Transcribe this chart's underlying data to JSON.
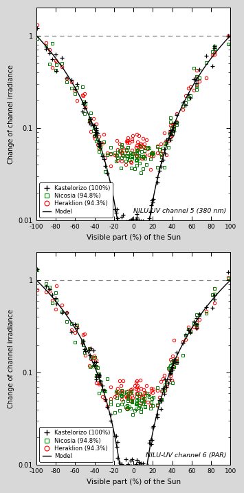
{
  "panel1_title": "NILU-UV channel 5 (380 nm)",
  "panel2_title": "NILU-UV channel 6 (PAR)",
  "xlabel": "Visible part (%) of the Sun",
  "ylabel": "Change of channel irradiance",
  "xlim": [
    -100,
    100
  ],
  "ylim_log": [
    0.01,
    2.0
  ],
  "dashed_y": 1.0,
  "kastelorizo_label": "Kastelorizo (100%)",
  "nicosia_label": "Nicosia (94.8%)",
  "heraklion_label": "Heraklion (94.3%)",
  "model_label": "Model",
  "background_color": "#d8d8d8",
  "panel_bg": "#ffffff",
  "ch5_exp": 2.55,
  "ch6_exp": 2.35,
  "nicosia_min": 0.05,
  "heraklion_min": 0.06
}
